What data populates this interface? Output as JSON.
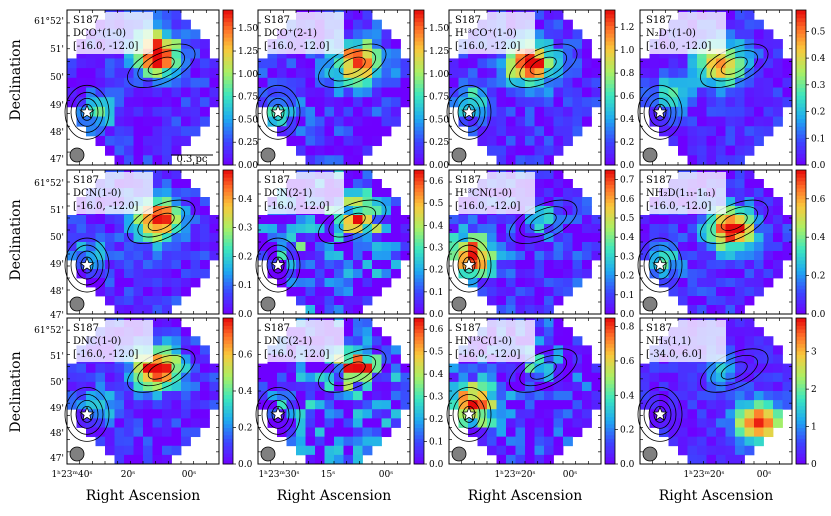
{
  "figure": {
    "y_axis_title": "Declination",
    "x_axis_title": "Right Ascension",
    "dec_tick_labels": [
      "61°52'",
      "51'",
      "50'",
      "49'",
      "48'",
      "47'"
    ],
    "scale_bar_label": "0.3 pc",
    "colormap": "rainbow",
    "colors": {
      "star": "#ffffff",
      "contour": "#000000",
      "beam": "#808080"
    }
  },
  "chart_data": [
    {
      "type": "heatmap",
      "source": "S187",
      "line": "DCO⁺(1-0)",
      "vrange": "[-16.0, -12.0]",
      "vmax": 1.7,
      "colorbar_ticks": [
        "0.00",
        "0.25",
        "0.50",
        "0.75",
        "1.00",
        "1.25",
        "1.50"
      ],
      "colorbar_values": [
        0,
        0.25,
        0.5,
        0.75,
        1.0,
        1.25,
        1.5
      ],
      "peak": {
        "col": 9,
        "row": 4,
        "amp": 1.0
      },
      "secondary": {
        "col": 3,
        "row": 10,
        "amp": 0.35
      },
      "noise": 0.12
    },
    {
      "type": "heatmap",
      "source": "S187",
      "line": "DCO⁺(2-1)",
      "vrange": "[-16.0, -12.0]",
      "vmax": 1.7,
      "colorbar_ticks": [
        "0.00",
        "0.25",
        "0.50",
        "0.75",
        "1.00",
        "1.25",
        "1.50"
      ],
      "colorbar_values": [
        0,
        0.25,
        0.5,
        0.75,
        1.0,
        1.25,
        1.5
      ],
      "peak": {
        "col": 10,
        "row": 5,
        "amp": 0.9
      },
      "secondary": {
        "col": 2,
        "row": 10,
        "amp": 0.35
      },
      "noise": 0.15
    },
    {
      "type": "heatmap",
      "source": "S187",
      "line": "H¹³CO⁺(1-0)",
      "vrange": "[-16.0, -12.0]",
      "vmax": 1.35,
      "colorbar_ticks": [
        "0.0",
        "0.2",
        "0.4",
        "0.6",
        "0.8",
        "1.0",
        "1.2"
      ],
      "colorbar_values": [
        0,
        0.2,
        0.4,
        0.6,
        0.8,
        1.0,
        1.2
      ],
      "peak": {
        "col": 8,
        "row": 5,
        "amp": 1.0
      },
      "secondary": {
        "col": 2,
        "row": 9,
        "amp": 0.4
      },
      "noise": 0.12
    },
    {
      "type": "heatmap",
      "source": "S187",
      "line": "N₂D⁺(1-0)",
      "vrange": "[-16.0, -12.0]",
      "vmax": 0.58,
      "colorbar_ticks": [
        "0.0",
        "0.1",
        "0.2",
        "0.3",
        "0.4",
        "0.5"
      ],
      "colorbar_values": [
        0,
        0.1,
        0.2,
        0.3,
        0.4,
        0.5
      ],
      "peak": {
        "col": 8,
        "row": 5,
        "amp": 0.8
      },
      "secondary": {
        "col": 3,
        "row": 8,
        "amp": 0.45
      },
      "noise": 0.1
    },
    {
      "type": "heatmap",
      "source": "S187",
      "line": "DCN(1-0)",
      "vrange": "[-16.0, -12.0]",
      "vmax": 0.5,
      "colorbar_ticks": [
        "0.0",
        "0.1",
        "0.2",
        "0.3",
        "0.4"
      ],
      "colorbar_values": [
        0,
        0.1,
        0.2,
        0.3,
        0.4
      ],
      "peak": {
        "col": 9,
        "row": 5,
        "amp": 0.95
      },
      "secondary": {
        "col": 2,
        "row": 9,
        "amp": 0.3
      },
      "noise": 0.12
    },
    {
      "type": "heatmap",
      "source": "S187",
      "line": "DCN(2-1)",
      "vrange": "[-16.0, -12.0]",
      "vmax": 0.65,
      "colorbar_ticks": [
        "0.0",
        "0.1",
        "0.2",
        "0.3",
        "0.4",
        "0.5",
        "0.6"
      ],
      "colorbar_values": [
        0,
        0.1,
        0.2,
        0.3,
        0.4,
        0.5,
        0.6
      ],
      "peak": {
        "col": 10,
        "row": 5,
        "amp": 0.7
      },
      "secondary": {
        "col": 3,
        "row": 8,
        "amp": 0.35
      },
      "noise": 0.3
    },
    {
      "type": "heatmap",
      "source": "S187",
      "line": "H¹³CN(1-0)",
      "vrange": "[-16.0, -12.0]",
      "vmax": 0.75,
      "colorbar_ticks": [
        "0.0",
        "0.1",
        "0.2",
        "0.3",
        "0.4",
        "0.5",
        "0.6",
        "0.7"
      ],
      "colorbar_values": [
        0,
        0.1,
        0.2,
        0.3,
        0.4,
        0.5,
        0.6,
        0.7
      ],
      "peak": {
        "col": 2,
        "row": 9,
        "amp": 0.9
      },
      "secondary": {
        "col": 9,
        "row": 5,
        "amp": 0.35
      },
      "noise": 0.15
    },
    {
      "type": "heatmap",
      "source": "S187",
      "line": "NH₂D(1₁₁-1₀₁)",
      "vrange": "[-16.0, -12.0]",
      "vmax": 0.75,
      "colorbar_ticks": [
        "0.0",
        "0.2",
        "0.4",
        "0.6"
      ],
      "colorbar_values": [
        0,
        0.2,
        0.4,
        0.6
      ],
      "peak": {
        "col": 9,
        "row": 6,
        "amp": 1.0
      },
      "secondary": {
        "col": 2,
        "row": 10,
        "amp": 0.4
      },
      "noise": 0.12
    },
    {
      "type": "heatmap",
      "source": "S187",
      "line": "DNC(1-0)",
      "vrange": "[-16.0, -12.0]",
      "vmax": 0.8,
      "colorbar_ticks": [
        "0.0",
        "0.2",
        "0.4",
        "0.6"
      ],
      "colorbar_values": [
        0,
        0.2,
        0.4,
        0.6
      ],
      "peak": {
        "col": 9,
        "row": 5,
        "amp": 1.0
      },
      "secondary": {
        "col": 3,
        "row": 9,
        "amp": 0.35
      },
      "noise": 0.12
    },
    {
      "type": "heatmap",
      "source": "S187",
      "line": "DNC(2-1)",
      "vrange": "[-16.0, -12.0]",
      "vmax": 0.65,
      "colorbar_ticks": [
        "0.0",
        "0.1",
        "0.2",
        "0.3",
        "0.4",
        "0.5",
        "0.6"
      ],
      "colorbar_values": [
        0,
        0.1,
        0.2,
        0.3,
        0.4,
        0.5,
        0.6
      ],
      "peak": {
        "col": 10,
        "row": 5,
        "amp": 0.75
      },
      "secondary": {
        "col": 3,
        "row": 9,
        "amp": 0.3
      },
      "noise": 0.3
    },
    {
      "type": "heatmap",
      "source": "S187",
      "line": "HN¹³C(1-0)",
      "vrange": "[-16.0, -12.0]",
      "vmax": 0.85,
      "colorbar_ticks": [
        "0.0",
        "0.2",
        "0.4",
        "0.6",
        "0.8"
      ],
      "colorbar_values": [
        0,
        0.2,
        0.4,
        0.6,
        0.8
      ],
      "peak": {
        "col": 2,
        "row": 9,
        "amp": 0.85
      },
      "secondary": {
        "col": 9,
        "row": 5,
        "amp": 0.35
      },
      "noise": 0.2
    },
    {
      "type": "heatmap",
      "source": "S187",
      "line": "NH₃(1,1)",
      "vrange": "[-34.0, 6.0]",
      "vmax": 3.9,
      "colorbar_ticks": [
        "0",
        "1",
        "2",
        "3"
      ],
      "colorbar_values": [
        0,
        1,
        2,
        3
      ],
      "peak": {
        "col": 12,
        "row": 11,
        "amp": 0.9
      },
      "secondary": {
        "col": 8,
        "row": 5,
        "amp": 0.3
      },
      "noise": 0.08
    }
  ],
  "x_ticks": {
    "col0": [
      "1ʰ23ᵐ40ˢ",
      "20ˢ",
      "00ˢ"
    ],
    "col1": [
      "1ʰ23ᵐ30ˢ",
      "15ˢ",
      "00ˢ"
    ],
    "col2": [
      "1ʰ23ᵐ20ˢ",
      "00ˢ"
    ],
    "col3": [
      "1ʰ23ᵐ20ˢ",
      "00ˢ"
    ]
  }
}
